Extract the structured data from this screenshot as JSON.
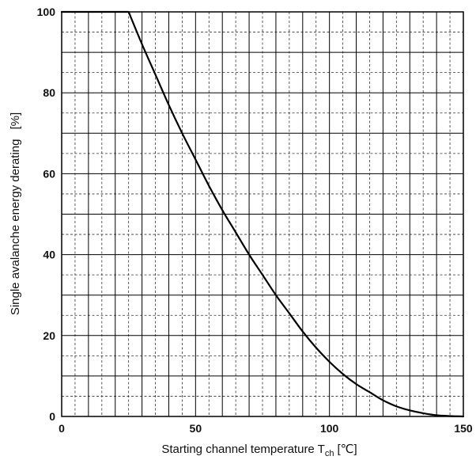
{
  "chart_data": {
    "type": "line",
    "title": "",
    "xlabel": {
      "main": "Starting channel temperature T",
      "subscript": "ch",
      "unit": "[℃]"
    },
    "ylabel": {
      "main": "Single avalanche energy derating",
      "unit": "[%]"
    },
    "xlim": [
      0,
      150
    ],
    "ylim": [
      0,
      100
    ],
    "x_ticks": [
      0,
      50,
      100,
      150
    ],
    "y_ticks": [
      0,
      20,
      40,
      60,
      80,
      100
    ],
    "x_tick_labels": [
      "0",
      "50",
      "100",
      "150"
    ],
    "y_tick_labels": [
      "0",
      "20",
      "40",
      "60",
      "80",
      "100"
    ],
    "grid": {
      "major": true,
      "minor": true,
      "minor_style": "dashed",
      "x_minor_step": 5,
      "y_minor_step": 5
    },
    "series": [
      {
        "color": "#000000",
        "x": [
          0,
          25,
          30,
          35,
          40,
          45,
          50,
          55,
          60,
          65,
          70,
          75,
          80,
          85,
          90,
          95,
          100,
          105,
          110,
          115,
          120,
          125,
          130,
          135,
          140,
          145,
          150
        ],
        "y": [
          100,
          100,
          92,
          84.5,
          77,
          70,
          63.5,
          57,
          51,
          45.5,
          40,
          35,
          30,
          25.5,
          21,
          17,
          13.5,
          10.5,
          8,
          6,
          4,
          2.5,
          1.5,
          0.8,
          0.3,
          0.1,
          0
        ]
      }
    ]
  }
}
